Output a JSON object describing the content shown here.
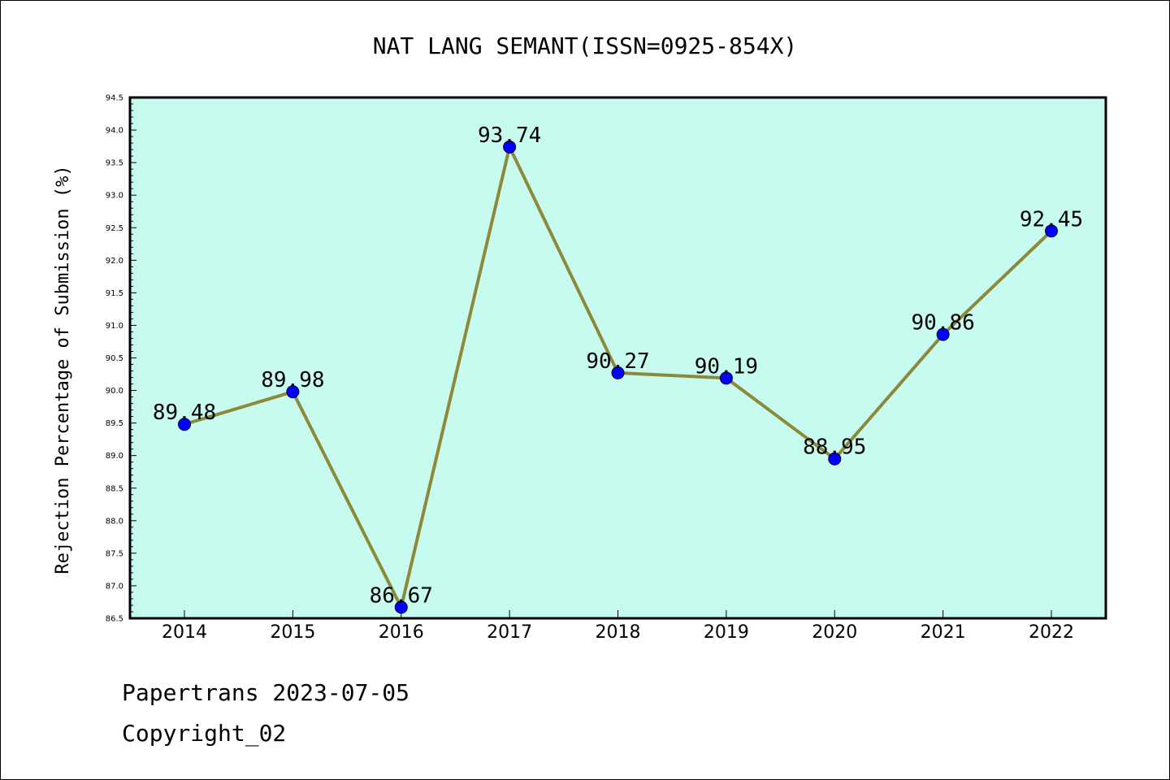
{
  "chart_data": {
    "type": "line",
    "title": "NAT LANG SEMANT(ISSN=0925-854X)",
    "xlabel": "",
    "ylabel": "Rejection Percentage of Submission (%)",
    "categories": [
      "2014",
      "2015",
      "2016",
      "2017",
      "2018",
      "2019",
      "2020",
      "2021",
      "2022"
    ],
    "values": [
      89.48,
      89.98,
      86.67,
      93.74,
      90.27,
      90.19,
      88.95,
      90.86,
      92.45
    ],
    "data_labels": [
      "89.48",
      "89.98",
      "86.67",
      "93.74",
      "90.27",
      "90.19",
      "88.95",
      "90.86",
      "92.45"
    ],
    "ylim": [
      86.5,
      94.5
    ],
    "yticks": [
      "86.5",
      "87.0",
      "87.5",
      "88.0",
      "88.5",
      "89.0",
      "89.5",
      "90.0",
      "90.5",
      "91.0",
      "91.5",
      "92.0",
      "92.5",
      "93.0",
      "93.5",
      "94.0",
      "94.5"
    ],
    "grid": false,
    "colors": {
      "plot_background": "#c8fbef",
      "line": "#8c8a3a",
      "marker": "#0000ff"
    }
  },
  "footer": {
    "source": "Papertrans 2023-07-05",
    "copyright": "Copyright_02"
  }
}
